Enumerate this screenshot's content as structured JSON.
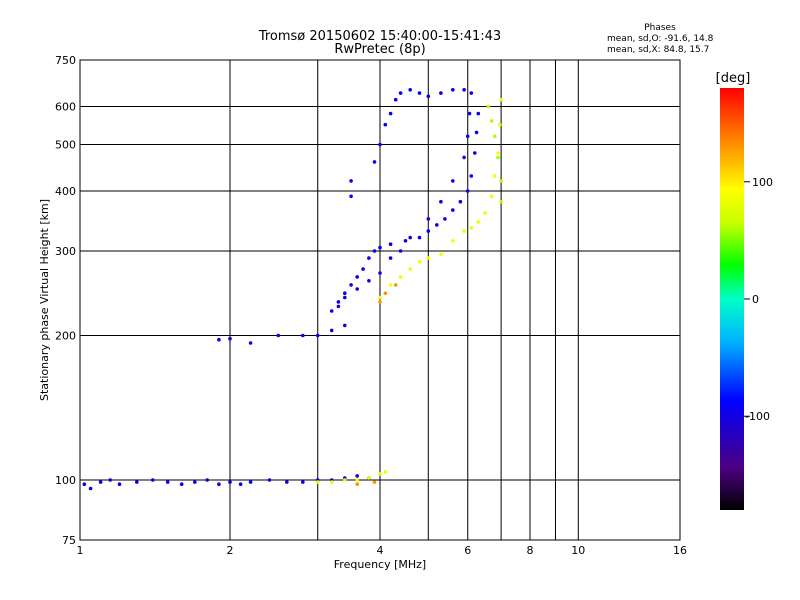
{
  "chart_data": {
    "type": "scatter",
    "title": "Tromsø 20150602 15:40:00-15:41:43",
    "subtitle": "RwPretec (8p)",
    "xlabel": "Frequency [MHz]",
    "ylabel": "Stationary phase Virtual Height [km]",
    "x_scale": "log",
    "y_scale": "log",
    "xlim": [
      1,
      16
    ],
    "ylim": [
      75,
      750
    ],
    "x_ticks": [
      1,
      2,
      4,
      6,
      8,
      10,
      16
    ],
    "x_ticks_unlabeled": [
      3,
      5,
      7,
      9
    ],
    "y_ticks": [
      75,
      100,
      200,
      300,
      400,
      500,
      600,
      750
    ],
    "grid": true,
    "phases_info": {
      "heading": "Phases",
      "line_o": "mean, sd,O: -91.6, 14.8",
      "line_x": "mean, sd,X:  84.8, 15.7"
    },
    "colorbar": {
      "label": "[deg]",
      "ticks": [
        100,
        0,
        -100
      ],
      "range": [
        -180,
        180
      ],
      "colors": [
        "#000000",
        "#4b0082",
        "#0000ff",
        "#00b4ff",
        "#00ffc8",
        "#00ff00",
        "#c8ff00",
        "#ffff00",
        "#ff8c00",
        "#ff0000"
      ]
    },
    "series": [
      {
        "phase": -95,
        "points": [
          [
            1.02,
            98
          ],
          [
            1.05,
            96
          ],
          [
            1.1,
            99
          ],
          [
            1.15,
            100
          ],
          [
            1.2,
            98
          ],
          [
            1.3,
            99
          ],
          [
            1.4,
            100
          ],
          [
            1.5,
            99
          ],
          [
            1.6,
            98
          ],
          [
            1.7,
            99
          ],
          [
            1.8,
            100
          ],
          [
            1.9,
            98
          ],
          [
            2.0,
            99
          ],
          [
            2.1,
            98
          ],
          [
            2.2,
            99
          ],
          [
            2.4,
            100
          ],
          [
            2.6,
            99
          ],
          [
            2.8,
            99
          ],
          [
            3.0,
            100
          ],
          [
            3.2,
            100
          ],
          [
            3.4,
            101
          ],
          [
            3.6,
            102
          ],
          [
            3.8,
            101
          ]
        ]
      },
      {
        "phase": -100,
        "points": [
          [
            1.9,
            196
          ],
          [
            2.0,
            197
          ],
          [
            2.2,
            193
          ],
          [
            2.5,
            200
          ],
          [
            2.8,
            200
          ],
          [
            3.0,
            200
          ],
          [
            3.2,
            205
          ],
          [
            3.4,
            210
          ]
        ]
      },
      {
        "phase": -95,
        "points": [
          [
            3.2,
            225
          ],
          [
            3.3,
            235
          ],
          [
            3.4,
            245
          ],
          [
            3.5,
            255
          ],
          [
            3.6,
            265
          ],
          [
            3.7,
            275
          ],
          [
            3.8,
            290
          ],
          [
            3.9,
            300
          ],
          [
            4.0,
            305
          ],
          [
            4.2,
            310
          ],
          [
            4.5,
            315
          ],
          [
            4.8,
            320
          ],
          [
            5.0,
            330
          ],
          [
            5.2,
            340
          ],
          [
            5.4,
            350
          ],
          [
            5.6,
            365
          ],
          [
            5.8,
            380
          ],
          [
            6.0,
            400
          ],
          [
            6.1,
            430
          ],
          [
            6.2,
            480
          ],
          [
            6.25,
            530
          ],
          [
            6.3,
            580
          ]
        ]
      },
      {
        "phase": -100,
        "points": [
          [
            3.3,
            230
          ],
          [
            3.4,
            240
          ],
          [
            3.6,
            250
          ],
          [
            3.8,
            260
          ],
          [
            4.0,
            270
          ],
          [
            4.2,
            290
          ],
          [
            4.4,
            300
          ],
          [
            4.6,
            320
          ],
          [
            5.0,
            350
          ],
          [
            5.3,
            380
          ],
          [
            5.6,
            420
          ],
          [
            5.9,
            470
          ],
          [
            6.0,
            520
          ],
          [
            6.05,
            580
          ],
          [
            6.1,
            640
          ]
        ]
      },
      {
        "phase": -90,
        "points": [
          [
            3.5,
            390
          ],
          [
            3.5,
            420
          ],
          [
            3.9,
            460
          ],
          [
            4.0,
            500
          ],
          [
            4.1,
            550
          ],
          [
            4.2,
            580
          ],
          [
            4.3,
            620
          ],
          [
            4.4,
            640
          ],
          [
            4.6,
            650
          ],
          [
            4.8,
            640
          ],
          [
            5.0,
            630
          ],
          [
            5.3,
            640
          ],
          [
            5.6,
            650
          ],
          [
            5.9,
            650
          ]
        ]
      },
      {
        "phase": 80,
        "points": [
          [
            3.0,
            99
          ],
          [
            3.2,
            99
          ],
          [
            3.4,
            100
          ],
          [
            3.6,
            100
          ],
          [
            3.8,
            101
          ],
          [
            4.0,
            103
          ],
          [
            4.1,
            104
          ]
        ]
      },
      {
        "phase": 85,
        "points": [
          [
            4.0,
            240
          ],
          [
            4.2,
            255
          ],
          [
            4.4,
            265
          ],
          [
            4.6,
            275
          ],
          [
            4.8,
            285
          ],
          [
            5.0,
            290
          ],
          [
            5.3,
            295
          ],
          [
            5.6,
            315
          ],
          [
            5.9,
            330
          ],
          [
            6.1,
            335
          ],
          [
            6.3,
            345
          ],
          [
            6.5,
            360
          ],
          [
            6.7,
            390
          ],
          [
            6.8,
            430
          ],
          [
            6.9,
            480
          ],
          [
            6.95,
            550
          ],
          [
            7.0,
            620
          ]
        ]
      },
      {
        "phase": 130,
        "points": [
          [
            3.6,
            98
          ],
          [
            3.9,
            99
          ],
          [
            4.0,
            235
          ],
          [
            4.1,
            245
          ],
          [
            4.3,
            255
          ]
        ]
      },
      {
        "phase": 60,
        "points": [
          [
            6.6,
            600
          ],
          [
            6.7,
            560
          ],
          [
            6.8,
            520
          ],
          [
            6.9,
            470
          ],
          [
            7.0,
            420
          ],
          [
            7.0,
            380
          ]
        ]
      }
    ]
  }
}
